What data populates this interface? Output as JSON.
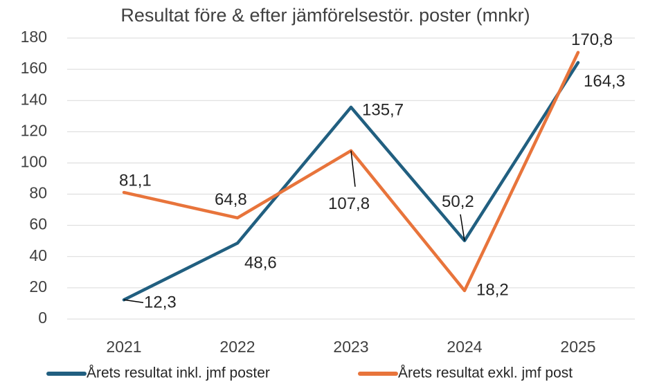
{
  "chart_data": {
    "type": "line",
    "title": "Resultat före & efter jämförelsestör. poster (mnkr)",
    "categories": [
      "2021",
      "2022",
      "2023",
      "2024",
      "2025"
    ],
    "series": [
      {
        "name": "Årets resultat inkl. jmf poster",
        "color": "#215f80",
        "values": [
          12.3,
          48.6,
          135.7,
          50.2,
          164.3
        ],
        "value_labels": [
          "12,3",
          "48,6",
          "135,7",
          "50,2",
          "164,3"
        ]
      },
      {
        "name": "Årets resultat exkl. jmf post",
        "color": "#e8743b",
        "values": [
          81.1,
          64.8,
          107.8,
          18.2,
          170.8
        ],
        "value_labels": [
          "81,1",
          "64,8",
          "107,8",
          "18,2",
          "170,8"
        ]
      }
    ],
    "ylim": [
      0,
      180
    ],
    "yticks": [
      0,
      20,
      40,
      60,
      80,
      100,
      120,
      140,
      160,
      180
    ],
    "grid": true
  }
}
